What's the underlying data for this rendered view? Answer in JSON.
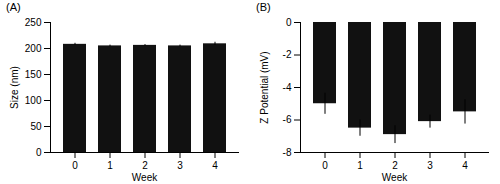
{
  "chart_data": [
    {
      "type": "bar",
      "title": "(A)",
      "categories": [
        "0",
        "1",
        "2",
        "3",
        "4"
      ],
      "values": [
        208,
        205,
        206,
        205,
        209
      ],
      "errors": [
        2,
        1.5,
        1.5,
        1.5,
        3
      ],
      "color": "#111111",
      "xlabel": "Week",
      "ylabel": "Size (nm)",
      "ylim": [
        0,
        250
      ],
      "yticks": [
        0,
        50,
        100,
        150,
        200,
        250
      ],
      "grid": false
    },
    {
      "type": "bar",
      "title": "(B)",
      "categories": [
        "0",
        "1",
        "2",
        "3",
        "4"
      ],
      "values": [
        -5.0,
        -6.5,
        -6.9,
        -6.1,
        -5.5
      ],
      "errors": [
        0.65,
        0.5,
        0.55,
        0.4,
        0.75
      ],
      "color": "#111111",
      "xlabel": "Week",
      "ylabel": "Z Potential (mV)",
      "ylim": [
        -8,
        0
      ],
      "yticks": [
        -8,
        -6,
        -4,
        -2,
        0
      ],
      "grid": false
    }
  ]
}
